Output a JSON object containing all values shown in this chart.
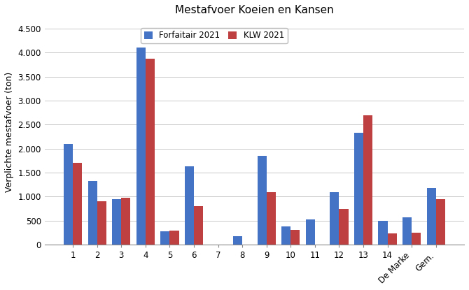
{
  "title": "Mestafvoer Koeien en Kansen",
  "ylabel": "Verplichte mestafvoer (ton)",
  "categories": [
    "1",
    "2",
    "3",
    "4",
    "5",
    "6",
    "7",
    "8",
    "9",
    "10",
    "11",
    "12",
    "13",
    "14",
    "De Marke",
    "Gem."
  ],
  "forfaitair": [
    2100,
    1325,
    950,
    4100,
    275,
    1625,
    0,
    175,
    1850,
    375,
    525,
    1100,
    2325,
    500,
    575,
    1175
  ],
  "klw": [
    1700,
    900,
    975,
    3875,
    290,
    800,
    0,
    0,
    1100,
    300,
    0,
    750,
    2700,
    240,
    250,
    950
  ],
  "color_forfaitair": "#4472c4",
  "color_klw": "#bf4040",
  "legend_forfaitair": "Forfaitair 2021",
  "legend_klw": "KLW 2021",
  "ylim": [
    0,
    4700
  ],
  "yticks": [
    0,
    500,
    1000,
    1500,
    2000,
    2500,
    3000,
    3500,
    4000,
    4500
  ],
  "bar_width": 0.38,
  "figsize": [
    6.7,
    4.15
  ],
  "dpi": 100,
  "grid_color": "#c8c8c8",
  "background_color": "#ffffff",
  "title_fontsize": 11,
  "axis_fontsize": 9,
  "tick_fontsize": 8.5
}
